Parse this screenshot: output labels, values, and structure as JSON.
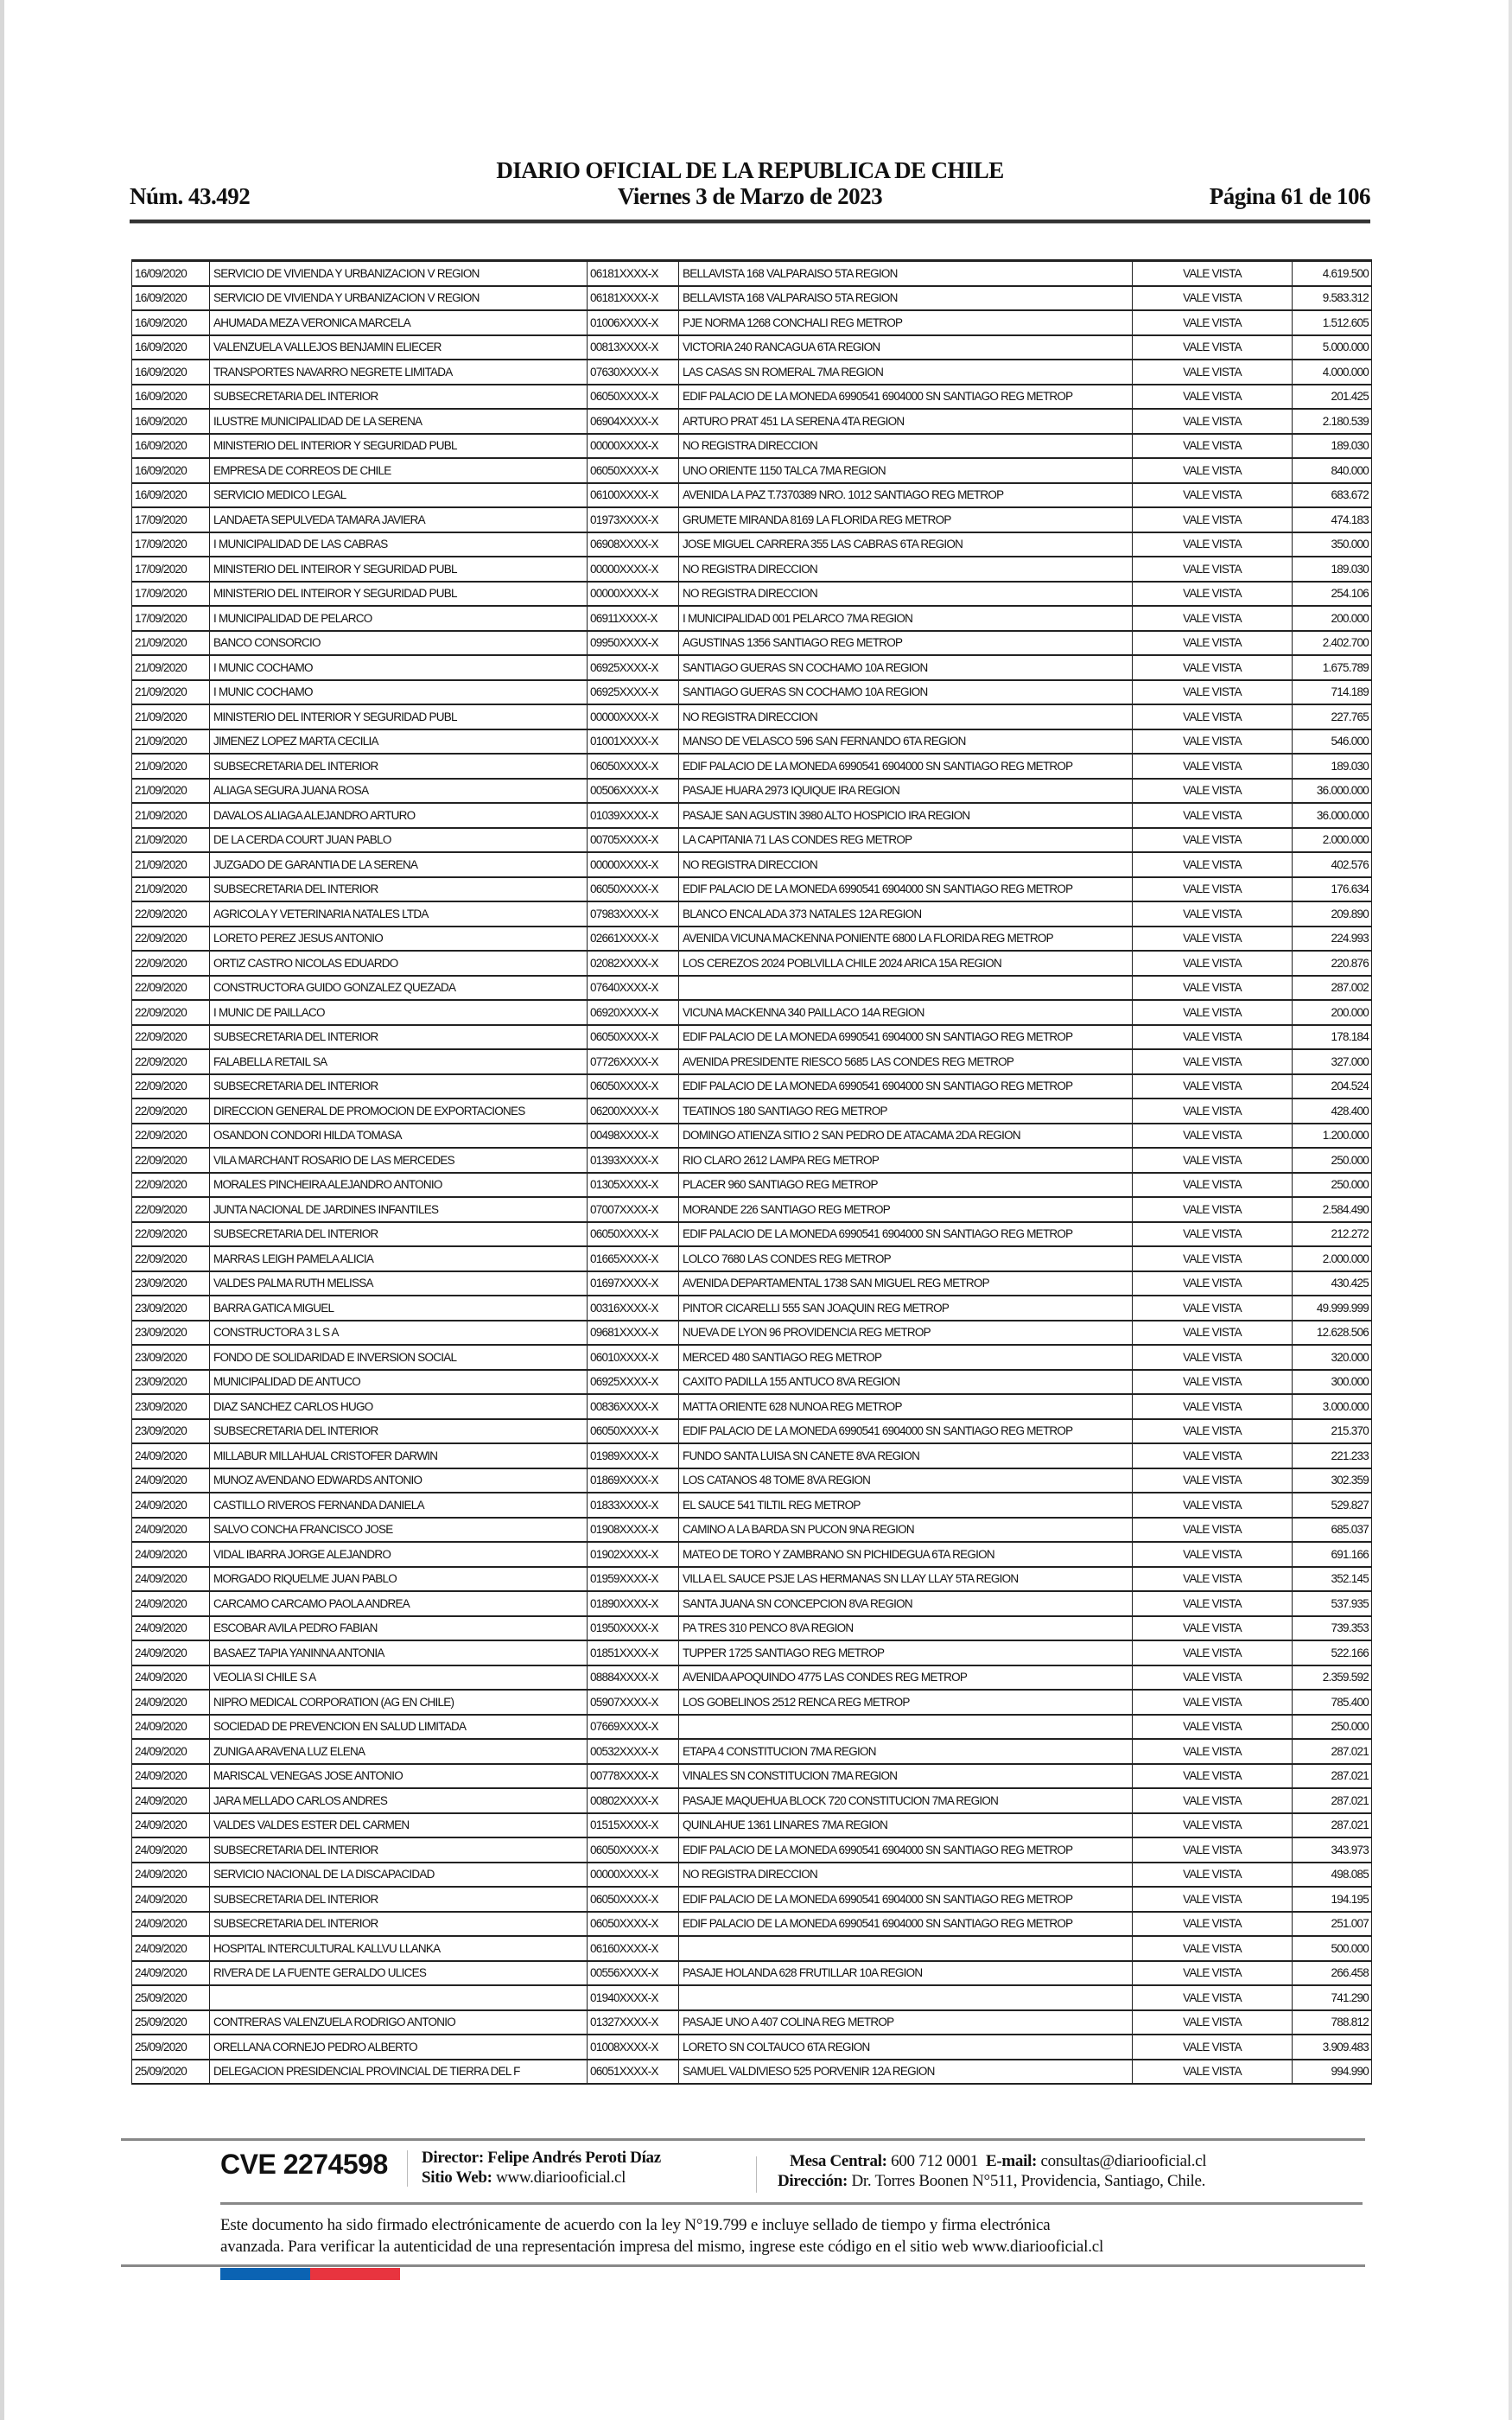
{
  "header": {
    "title": "DIARIO OFICIAL DE LA REPUBLICA DE CHILE",
    "issue_number": "Núm. 43.492",
    "date": "Viernes 3 de Marzo de 2023",
    "page": "Página 61 de 106"
  },
  "table": {
    "rows": [
      [
        "16/09/2020",
        "SERVICIO DE VIVIENDA Y URBANIZACION V REGION",
        "06181XXXX-X",
        "BELLAVISTA 168 VALPARAISO 5TA REGION",
        "VALE VISTA",
        "4.619.500"
      ],
      [
        "16/09/2020",
        "SERVICIO DE VIVIENDA Y URBANIZACION V REGION",
        "06181XXXX-X",
        "BELLAVISTA 168 VALPARAISO 5TA REGION",
        "VALE VISTA",
        "9.583.312"
      ],
      [
        "16/09/2020",
        "AHUMADA MEZA VERONICA MARCELA",
        "01006XXXX-X",
        "PJE NORMA 1268 CONCHALI REG METROP",
        "VALE VISTA",
        "1.512.605"
      ],
      [
        "16/09/2020",
        "VALENZUELA VALLEJOS BENJAMIN ELIECER",
        "00813XXXX-X",
        "VICTORIA 240 RANCAGUA 6TA REGION",
        "VALE VISTA",
        "5.000.000"
      ],
      [
        "16/09/2020",
        "TRANSPORTES NAVARRO NEGRETE LIMITADA",
        "07630XXXX-X",
        "LAS CASAS SN ROMERAL 7MA REGION",
        "VALE VISTA",
        "4.000.000"
      ],
      [
        "16/09/2020",
        "SUBSECRETARIA DEL INTERIOR",
        "06050XXXX-X",
        "EDIF PALACIO DE LA MONEDA 6990541 6904000 SN SANTIAGO REG METROP",
        "VALE VISTA",
        "201.425"
      ],
      [
        "16/09/2020",
        "ILUSTRE MUNICIPALIDAD DE LA SERENA",
        "06904XXXX-X",
        "ARTURO PRAT 451 LA SERENA 4TA REGION",
        "VALE VISTA",
        "2.180.539"
      ],
      [
        "16/09/2020",
        "MINISTERIO DEL INTERIOR Y SEGURIDAD PUBL",
        "00000XXXX-X",
        "NO REGISTRA DIRECCION",
        "VALE VISTA",
        "189.030"
      ],
      [
        "16/09/2020",
        "EMPRESA DE CORREOS DE CHILE",
        "06050XXXX-X",
        "UNO ORIENTE 1150 TALCA 7MA REGION",
        "VALE VISTA",
        "840.000"
      ],
      [
        "16/09/2020",
        "SERVICIO MEDICO LEGAL",
        "06100XXXX-X",
        "AVENIDA LA PAZ T.7370389 NRO. 1012 SANTIAGO REG METROP",
        "VALE VISTA",
        "683.672"
      ],
      [
        "17/09/2020",
        "LANDAETA SEPULVEDA TAMARA JAVIERA",
        "01973XXXX-X",
        "GRUMETE MIRANDA 8169 LA FLORIDA REG METROP",
        "VALE VISTA",
        "474.183"
      ],
      [
        "17/09/2020",
        "I MUNICIPALIDAD DE LAS CABRAS",
        "06908XXXX-X",
        "JOSE MIGUEL CARRERA 355 LAS CABRAS 6TA REGION",
        "VALE VISTA",
        "350.000"
      ],
      [
        "17/09/2020",
        "MINISTERIO DEL INTEIROR Y SEGURIDAD PUBL",
        "00000XXXX-X",
        "NO REGISTRA DIRECCION",
        "VALE VISTA",
        "189.030"
      ],
      [
        "17/09/2020",
        "MINISTERIO DEL INTEIROR Y SEGURIDAD PUBL",
        "00000XXXX-X",
        "NO REGISTRA DIRECCION",
        "VALE VISTA",
        "254.106"
      ],
      [
        "17/09/2020",
        "I MUNICIPALIDAD DE PELARCO",
        "06911XXXX-X",
        "I MUNICIPALIDAD 001 PELARCO 7MA REGION",
        "VALE VISTA",
        "200.000"
      ],
      [
        "21/09/2020",
        "BANCO CONSORCIO",
        "09950XXXX-X",
        "AGUSTINAS 1356 SANTIAGO REG METROP",
        "VALE VISTA",
        "2.402.700"
      ],
      [
        "21/09/2020",
        "I MUNIC COCHAMO",
        "06925XXXX-X",
        "SANTIAGO GUERAS SN COCHAMO 10A REGION",
        "VALE VISTA",
        "1.675.789"
      ],
      [
        "21/09/2020",
        "I MUNIC COCHAMO",
        "06925XXXX-X",
        "SANTIAGO GUERAS SN COCHAMO 10A REGION",
        "VALE VISTA",
        "714.189"
      ],
      [
        "21/09/2020",
        "MINISTERIO DEL INTERIOR Y SEGURIDAD PUBL",
        "00000XXXX-X",
        "NO REGISTRA DIRECCION",
        "VALE VISTA",
        "227.765"
      ],
      [
        "21/09/2020",
        "JIMENEZ LOPEZ MARTA CECILIA",
        "01001XXXX-X",
        "MANSO DE VELASCO 596 SAN FERNANDO 6TA REGION",
        "VALE VISTA",
        "546.000"
      ],
      [
        "21/09/2020",
        "SUBSECRETARIA DEL INTERIOR",
        "06050XXXX-X",
        "EDIF PALACIO DE LA MONEDA 6990541 6904000 SN SANTIAGO REG METROP",
        "VALE VISTA",
        "189.030"
      ],
      [
        "21/09/2020",
        "ALIAGA SEGURA JUANA ROSA",
        "00506XXXX-X",
        "PASAJE HUARA 2973 IQUIQUE IRA REGION",
        "VALE VISTA",
        "36.000.000"
      ],
      [
        "21/09/2020",
        "DAVALOS ALIAGA ALEJANDRO ARTURO",
        "01039XXXX-X",
        "PASAJE SAN AGUSTIN 3980 ALTO HOSPICIO IRA REGION",
        "VALE VISTA",
        "36.000.000"
      ],
      [
        "21/09/2020",
        "DE LA CERDA COURT JUAN PABLO",
        "00705XXXX-X",
        "LA CAPITANIA 71 LAS CONDES REG METROP",
        "VALE VISTA",
        "2.000.000"
      ],
      [
        "21/09/2020",
        "JUZGADO DE GARANTIA DE LA SERENA",
        "00000XXXX-X",
        "NO REGISTRA DIRECCION",
        "VALE VISTA",
        "402.576"
      ],
      [
        "21/09/2020",
        "SUBSECRETARIA DEL INTERIOR",
        "06050XXXX-X",
        "EDIF PALACIO DE LA MONEDA 6990541 6904000 SN SANTIAGO REG METROP",
        "VALE VISTA",
        "176.634"
      ],
      [
        "22/09/2020",
        "AGRICOLA Y VETERINARIA NATALES LTDA",
        "07983XXXX-X",
        "BLANCO ENCALADA 373 NATALES 12A REGION",
        "VALE VISTA",
        "209.890"
      ],
      [
        "22/09/2020",
        "LORETO PEREZ JESUS ANTONIO",
        "02661XXXX-X",
        "AVENIDA VICUNA MACKENNA PONIENTE 6800 LA FLORIDA REG METROP",
        "VALE VISTA",
        "224.993"
      ],
      [
        "22/09/2020",
        "ORTIZ CASTRO NICOLAS EDUARDO",
        "02082XXXX-X",
        "LOS CEREZOS 2024 POBLVILLA CHILE 2024 ARICA 15A REGION",
        "VALE VISTA",
        "220.876"
      ],
      [
        "22/09/2020",
        "CONSTRUCTORA GUIDO GONZALEZ QUEZADA",
        "07640XXXX-X",
        "",
        "VALE VISTA",
        "287.002"
      ],
      [
        "22/09/2020",
        "I MUNIC DE PAILLACO",
        "06920XXXX-X",
        "VICUNA MACKENNA 340 PAILLACO 14A REGION",
        "VALE VISTA",
        "200.000"
      ],
      [
        "22/09/2020",
        "SUBSECRETARIA DEL INTERIOR",
        "06050XXXX-X",
        "EDIF PALACIO DE LA MONEDA 6990541 6904000 SN SANTIAGO REG METROP",
        "VALE VISTA",
        "178.184"
      ],
      [
        "22/09/2020",
        "FALABELLA RETAIL SA",
        "07726XXXX-X",
        "AVENIDA PRESIDENTE RIESCO 5685 LAS CONDES REG METROP",
        "VALE VISTA",
        "327.000"
      ],
      [
        "22/09/2020",
        "SUBSECRETARIA DEL INTERIOR",
        "06050XXXX-X",
        "EDIF PALACIO DE LA MONEDA 6990541 6904000 SN SANTIAGO REG METROP",
        "VALE VISTA",
        "204.524"
      ],
      [
        "22/09/2020",
        "DIRECCION GENERAL DE PROMOCION DE EXPORTACIONES",
        "06200XXXX-X",
        "TEATINOS 180 SANTIAGO REG METROP",
        "VALE VISTA",
        "428.400"
      ],
      [
        "22/09/2020",
        "OSANDON CONDORI HILDA TOMASA",
        "00498XXXX-X",
        "DOMINGO ATIENZA SITIO 2 SAN PEDRO DE ATACAMA 2DA REGION",
        "VALE VISTA",
        "1.200.000"
      ],
      [
        "22/09/2020",
        "VILA MARCHANT ROSARIO DE LAS MERCEDES",
        "01393XXXX-X",
        "RIO CLARO 2612 LAMPA REG METROP",
        "VALE VISTA",
        "250.000"
      ],
      [
        "22/09/2020",
        "MORALES PINCHEIRA ALEJANDRO ANTONIO",
        "01305XXXX-X",
        "PLACER 960 SANTIAGO REG METROP",
        "VALE VISTA",
        "250.000"
      ],
      [
        "22/09/2020",
        "JUNTA NACIONAL DE JARDINES INFANTILES",
        "07007XXXX-X",
        "MORANDE 226 SANTIAGO REG METROP",
        "VALE VISTA",
        "2.584.490"
      ],
      [
        "22/09/2020",
        "SUBSECRETARIA DEL INTERIOR",
        "06050XXXX-X",
        "EDIF PALACIO DE LA MONEDA 6990541 6904000 SN SANTIAGO REG METROP",
        "VALE VISTA",
        "212.272"
      ],
      [
        "22/09/2020",
        "MARRAS LEIGH PAMELA ALICIA",
        "01665XXXX-X",
        "LOLCO 7680 LAS CONDES REG METROP",
        "VALE VISTA",
        "2.000.000"
      ],
      [
        "23/09/2020",
        "VALDES PALMA RUTH MELISSA",
        "01697XXXX-X",
        "AVENIDA DEPARTAMENTAL 1738 SAN MIGUEL REG METROP",
        "VALE VISTA",
        "430.425"
      ],
      [
        "23/09/2020",
        "BARRA GATICA MIGUEL",
        "00316XXXX-X",
        "PINTOR CICARELLI 555 SAN JOAQUIN REG METROP",
        "VALE VISTA",
        "49.999.999"
      ],
      [
        "23/09/2020",
        "CONSTRUCTORA 3 L S A",
        "09681XXXX-X",
        "NUEVA DE LYON 96 PROVIDENCIA REG METROP",
        "VALE VISTA",
        "12.628.506"
      ],
      [
        "23/09/2020",
        "FONDO DE SOLIDARIDAD E INVERSION SOCIAL",
        "06010XXXX-X",
        "MERCED 480 SANTIAGO REG METROP",
        "VALE VISTA",
        "320.000"
      ],
      [
        "23/09/2020",
        "MUNICIPALIDAD DE ANTUCO",
        "06925XXXX-X",
        "CAXITO PADILLA 155 ANTUCO 8VA REGION",
        "VALE VISTA",
        "300.000"
      ],
      [
        "23/09/2020",
        "DIAZ SANCHEZ CARLOS HUGO",
        "00836XXXX-X",
        "MATTA ORIENTE 628 NUNOA REG METROP",
        "VALE VISTA",
        "3.000.000"
      ],
      [
        "23/09/2020",
        "SUBSECRETARIA DEL INTERIOR",
        "06050XXXX-X",
        "EDIF PALACIO DE LA MONEDA 6990541 6904000 SN SANTIAGO REG METROP",
        "VALE VISTA",
        "215.370"
      ],
      [
        "24/09/2020",
        "MILLABUR MILLAHUAL CRISTOFER DARWIN",
        "01989XXXX-X",
        "FUNDO SANTA LUISA SN CANETE 8VA REGION",
        "VALE VISTA",
        "221.233"
      ],
      [
        "24/09/2020",
        "MUNOZ AVENDANO EDWARDS ANTONIO",
        "01869XXXX-X",
        "LOS CATANOS 48 TOME 8VA REGION",
        "VALE VISTA",
        "302.359"
      ],
      [
        "24/09/2020",
        "CASTILLO RIVEROS FERNANDA DANIELA",
        "01833XXXX-X",
        "EL SAUCE 541 TILTIL REG METROP",
        "VALE VISTA",
        "529.827"
      ],
      [
        "24/09/2020",
        "SALVO CONCHA FRANCISCO JOSE",
        "01908XXXX-X",
        "CAMINO A LA BARDA SN PUCON 9NA REGION",
        "VALE VISTA",
        "685.037"
      ],
      [
        "24/09/2020",
        "VIDAL IBARRA JORGE ALEJANDRO",
        "01902XXXX-X",
        "MATEO DE TORO Y ZAMBRANO SN PICHIDEGUA 6TA REGION",
        "VALE VISTA",
        "691.166"
      ],
      [
        "24/09/2020",
        "MORGADO RIQUELME JUAN PABLO",
        "01959XXXX-X",
        "VILLA EL SAUCE PSJE LAS HERMANAS SN LLAY LLAY 5TA REGION",
        "VALE VISTA",
        "352.145"
      ],
      [
        "24/09/2020",
        "CARCAMO CARCAMO PAOLA ANDREA",
        "01890XXXX-X",
        "SANTA JUANA SN CONCEPCION 8VA REGION",
        "VALE VISTA",
        "537.935"
      ],
      [
        "24/09/2020",
        "ESCOBAR AVILA PEDRO FABIAN",
        "01950XXXX-X",
        "PA TRES 310 PENCO 8VA REGION",
        "VALE VISTA",
        "739.353"
      ],
      [
        "24/09/2020",
        "BASAEZ TAPIA YANINNA ANTONIA",
        "01851XXXX-X",
        "TUPPER 1725 SANTIAGO REG METROP",
        "VALE VISTA",
        "522.166"
      ],
      [
        "24/09/2020",
        "VEOLIA SI CHILE S A",
        "08884XXXX-X",
        "AVENIDA APOQUINDO 4775 LAS CONDES REG METROP",
        "VALE VISTA",
        "2.359.592"
      ],
      [
        "24/09/2020",
        "NIPRO MEDICAL CORPORATION (AG EN CHILE)",
        "05907XXXX-X",
        "LOS GOBELINOS 2512 RENCA REG METROP",
        "VALE VISTA",
        "785.400"
      ],
      [
        "24/09/2020",
        "SOCIEDAD DE PREVENCION EN SALUD LIMITADA",
        "07669XXXX-X",
        "",
        "VALE VISTA",
        "250.000"
      ],
      [
        "24/09/2020",
        "ZUNIGA ARAVENA LUZ ELENA",
        "00532XXXX-X",
        "ETAPA 4 CONSTITUCION 7MA REGION",
        "VALE VISTA",
        "287.021"
      ],
      [
        "24/09/2020",
        "MARISCAL VENEGAS JOSE ANTONIO",
        "00778XXXX-X",
        "VINALES SN CONSTITUCION 7MA REGION",
        "VALE VISTA",
        "287.021"
      ],
      [
        "24/09/2020",
        "JARA MELLADO CARLOS ANDRES",
        "00802XXXX-X",
        "PASAJE MAQUEHUA BLOCK 720 CONSTITUCION 7MA REGION",
        "VALE VISTA",
        "287.021"
      ],
      [
        "24/09/2020",
        "VALDES VALDES ESTER DEL CARMEN",
        "01515XXXX-X",
        "QUINLAHUE 1361 LINARES 7MA REGION",
        "VALE VISTA",
        "287.021"
      ],
      [
        "24/09/2020",
        "SUBSECRETARIA DEL INTERIOR",
        "06050XXXX-X",
        "EDIF PALACIO DE LA MONEDA 6990541 6904000 SN SANTIAGO REG METROP",
        "VALE VISTA",
        "343.973"
      ],
      [
        "24/09/2020",
        "SERVICIO NACIONAL DE LA DISCAPACIDAD",
        "00000XXXX-X",
        "NO REGISTRA DIRECCION",
        "VALE VISTA",
        "498.085"
      ],
      [
        "24/09/2020",
        "SUBSECRETARIA DEL INTERIOR",
        "06050XXXX-X",
        "EDIF PALACIO DE LA MONEDA 6990541 6904000 SN SANTIAGO REG METROP",
        "VALE VISTA",
        "194.195"
      ],
      [
        "24/09/2020",
        "SUBSECRETARIA DEL INTERIOR",
        "06050XXXX-X",
        "EDIF PALACIO DE LA MONEDA 6990541 6904000 SN SANTIAGO REG METROP",
        "VALE VISTA",
        "251.007"
      ],
      [
        "24/09/2020",
        "HOSPITAL INTERCULTURAL KALLVU LLANKA",
        "06160XXXX-X",
        "",
        "VALE VISTA",
        "500.000"
      ],
      [
        "24/09/2020",
        "RIVERA DE LA FUENTE GERALDO ULICES",
        "00556XXXX-X",
        "PASAJE HOLANDA 628 FRUTILLAR 10A REGION",
        "VALE VISTA",
        "266.458"
      ],
      [
        "25/09/2020",
        "",
        "01940XXXX-X",
        "",
        "VALE VISTA",
        "741.290"
      ],
      [
        "25/09/2020",
        "CONTRERAS VALENZUELA RODRIGO ANTONIO",
        "01327XXXX-X",
        "PASAJE UNO A 407 COLINA REG METROP",
        "VALE VISTA",
        "788.812"
      ],
      [
        "25/09/2020",
        "ORELLANA CORNEJO PEDRO ALBERTO",
        "01008XXXX-X",
        "LORETO SN COLTAUCO 6TA REGION",
        "VALE VISTA",
        "3.909.483"
      ],
      [
        "25/09/2020",
        "DELEGACION PRESIDENCIAL PROVINCIAL DE TIERRA DEL F",
        "06051XXXX-X",
        "SAMUEL VALDIVIESO 525 PORVENIR 12A REGION",
        "VALE VISTA",
        "994.990"
      ]
    ]
  },
  "footer": {
    "cve": "CVE 2274598",
    "director_label": "Director:",
    "director_name": "Felipe Andrés Peroti Díaz",
    "website_label": "Sitio Web:",
    "website": "www.diariooficial.cl",
    "phone_label": "Mesa Central:",
    "phone": "600 712 0001",
    "email_label": "E-mail:",
    "email": "consultas@diariooficial.cl",
    "address_label": "Dirección:",
    "address": "Dr. Torres Boonen N°511, Providencia, Santiago, Chile.",
    "disclaimer_line1": "Este documento ha sido firmado electrónicamente de acuerdo con la ley N°19.799 e incluye sellado de tiempo y firma electrónica",
    "disclaimer_line2": "avanzada. Para verificar la autenticidad de una representación impresa del mismo, ingrese este código en el sitio web www.diariooficial.cl",
    "flag_colors": [
      "#0b63b3",
      "#e8343f"
    ]
  }
}
